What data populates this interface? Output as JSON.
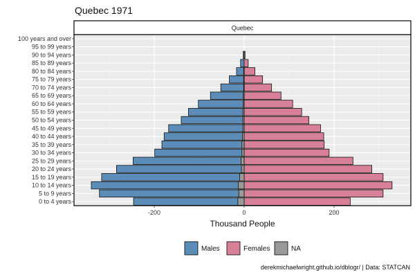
{
  "chart_data": {
    "type": "bar",
    "orientation": "horizontal",
    "title": "Quebec 1971",
    "facet_label": "Quebec",
    "xlabel": "Thousand People",
    "ylabel": "",
    "xlim": [
      -340,
      330
    ],
    "x_ticks": [
      -200,
      0,
      200
    ],
    "x_tick_labels": [
      "-200",
      "0",
      "200"
    ],
    "grid": true,
    "legend_position": "bottom",
    "caption": "derekmichaelwright.github.io/dblogr/ | Data: STATCAN",
    "categories": [
      "0 to 4 years",
      "5 to 9 years",
      "10 to 14 years",
      "15 to 19 years",
      "20 to 24 years",
      "25 to 29 years",
      "30 to 34 years",
      "35 to 39 years",
      "40 to 44 years",
      "45 to 49 years",
      "50 to 54 years",
      "55 to 59 years",
      "60 to 64 years",
      "65 to 69 years",
      "70 to 74 years",
      "75 to 79 years",
      "80 to 84 years",
      "85 to 89 years",
      "90 to 94 years",
      "95 to 99 years",
      "100 years and over"
    ],
    "series": [
      {
        "name": "Males",
        "color": "#5B8DB8",
        "values": [
          -246,
          -322,
          -340,
          -317,
          -284,
          -247,
          -199,
          -183,
          -178,
          -168,
          -140,
          -124,
          -102,
          -75,
          -52,
          -33,
          -17,
          -8,
          -2,
          0,
          0
        ]
      },
      {
        "name": "Females",
        "color": "#D98099",
        "values": [
          236,
          309,
          329,
          309,
          284,
          242,
          189,
          178,
          177,
          170,
          144,
          128,
          108,
          82,
          61,
          41,
          24,
          9,
          2,
          0,
          0
        ]
      },
      {
        "name": "NA",
        "color": "#999999",
        "values": [
          -14,
          -12,
          -13,
          -10,
          -6,
          -7,
          -5,
          -5,
          -4,
          -3,
          -3,
          -3,
          -2,
          -2,
          -1,
          -1,
          -1,
          0,
          0,
          0,
          0
        ]
      }
    ]
  }
}
